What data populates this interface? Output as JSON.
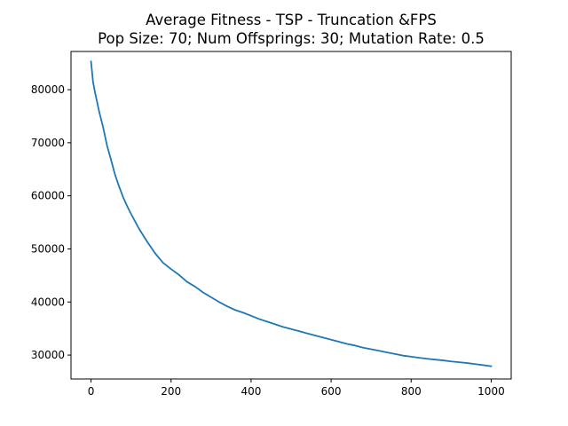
{
  "chart_data": {
    "type": "line",
    "title": "Average Fitness - TSP - Truncation &FPS",
    "subtitle": "Pop Size: 70; Num Offsprings: 30; Mutation Rate: 0.5",
    "xlabel": "",
    "ylabel": "",
    "xlim": [
      -50,
      1050
    ],
    "ylim": [
      25500,
      87200
    ],
    "grid": false,
    "x_ticks": [
      0,
      200,
      400,
      600,
      800,
      1000
    ],
    "x_tick_labels": [
      "0",
      "200",
      "400",
      "600",
      "800",
      "1000"
    ],
    "y_ticks": [
      30000,
      40000,
      50000,
      60000,
      70000,
      80000
    ],
    "y_tick_labels": [
      "30000",
      "40000",
      "50000",
      "60000",
      "70000",
      "80000"
    ],
    "series": [
      {
        "color": "#1f77b4",
        "x": [
          0,
          5,
          10,
          20,
          30,
          40,
          50,
          60,
          70,
          80,
          90,
          100,
          120,
          140,
          160,
          180,
          200,
          220,
          240,
          260,
          280,
          300,
          320,
          340,
          360,
          380,
          400,
          420,
          440,
          460,
          480,
          500,
          520,
          540,
          560,
          580,
          600,
          620,
          640,
          660,
          680,
          700,
          720,
          740,
          760,
          780,
          800,
          820,
          840,
          860,
          880,
          900,
          920,
          940,
          960,
          980,
          1000
        ],
        "y": [
          85300,
          81500,
          79500,
          76000,
          73000,
          69500,
          66800,
          64000,
          61800,
          59800,
          58100,
          56600,
          53800,
          51400,
          49200,
          47400,
          46200,
          45100,
          43800,
          42900,
          41800,
          40900,
          40000,
          39200,
          38500,
          38000,
          37400,
          36800,
          36300,
          35800,
          35300,
          34900,
          34500,
          34100,
          33700,
          33300,
          32900,
          32500,
          32100,
          31800,
          31400,
          31100,
          30800,
          30500,
          30200,
          29900,
          29700,
          29500,
          29300,
          29150,
          29000,
          28800,
          28650,
          28500,
          28300,
          28100,
          27900
        ]
      }
    ]
  }
}
